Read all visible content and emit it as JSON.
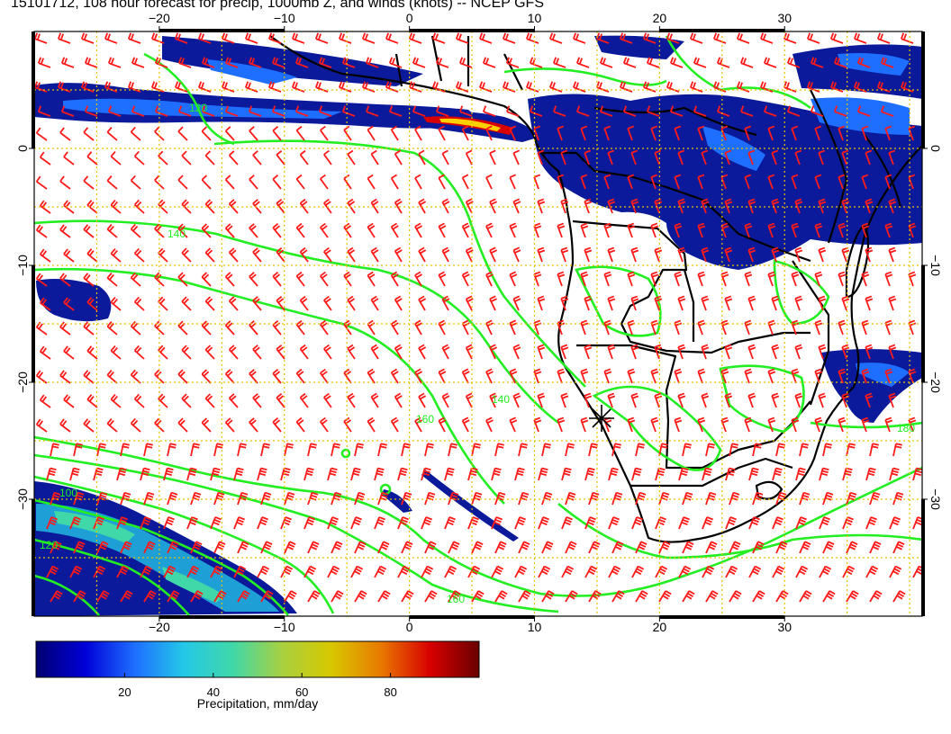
{
  "title": "15101712, 108 hour forecast for precip, 1000mb Z, and winds (knots) -- NCEP GFS",
  "map": {
    "lon_range": [
      -30,
      41
    ],
    "lat_range": [
      -40,
      10
    ],
    "lon_ticks": [
      -20,
      -10,
      0,
      10,
      20,
      30
    ],
    "lat_ticks": [
      0,
      -10,
      -20,
      -30
    ],
    "lon_tick_labels": [
      "−20",
      "−10",
      "0",
      "10",
      "20",
      "30"
    ],
    "lat_tick_labels": [
      "0",
      "−10",
      "−20",
      "−30"
    ],
    "contour_labels": [
      "120",
      "140",
      "160",
      "100",
      "120",
      "140",
      "160",
      "180"
    ],
    "colors": {
      "contour": "#22ee22",
      "barb": "#ff1a1a",
      "coast": "#000000",
      "grid": "#e6c200",
      "precip_low": "#0a1a9a",
      "precip_mid": "#1e9fd6",
      "precip_high": "#b01010"
    }
  },
  "colorbar": {
    "label": "Precipitation, mm/day",
    "range": [
      0,
      100
    ],
    "ticks": [
      20,
      40,
      60,
      80
    ],
    "tick_labels": [
      "20",
      "40",
      "60",
      "80"
    ],
    "stops": [
      "#000070",
      "#0000d8",
      "#1e6eff",
      "#24c8e8",
      "#40d8a8",
      "#a8d040",
      "#d8c800",
      "#e87a00",
      "#d80000",
      "#6a0000"
    ]
  }
}
